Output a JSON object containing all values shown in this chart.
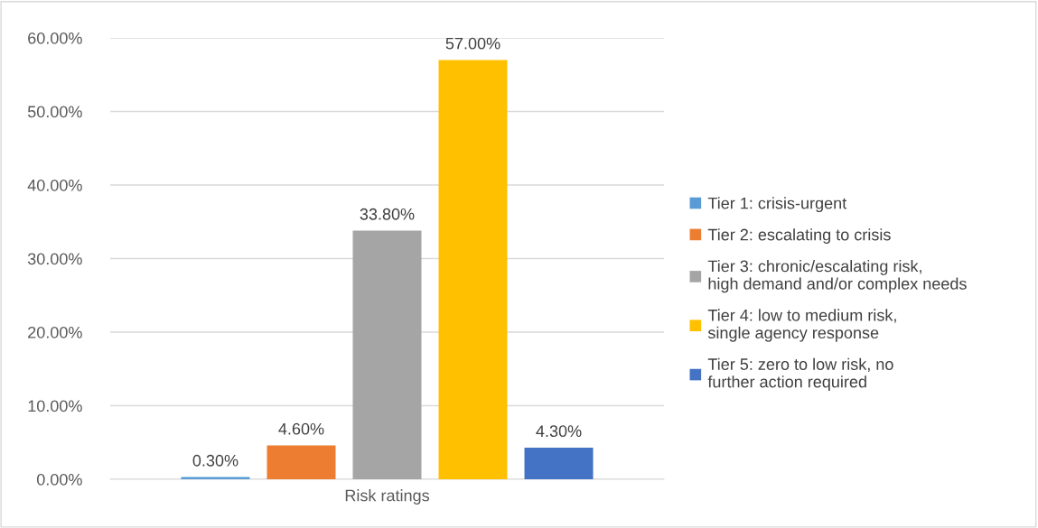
{
  "chart_data": {
    "type": "bar",
    "categories": [
      "Risk ratings"
    ],
    "series": [
      {
        "name": "Tier 1: crisis-urgent",
        "color": "#5b9bd5",
        "values": [
          0.3
        ],
        "value_labels": [
          "0.30%"
        ]
      },
      {
        "name": "Tier 2: escalating to crisis",
        "color": "#ed7d31",
        "values": [
          4.6
        ],
        "value_labels": [
          "4.60%"
        ]
      },
      {
        "name": "Tier 3: chronic/escalating risk, high demand and/or complex needs",
        "color": "#a5a5a5",
        "values": [
          33.8
        ],
        "value_labels": [
          "33.80%"
        ]
      },
      {
        "name": "Tier 4: low to medium risk, single agency response",
        "color": "#ffc000",
        "values": [
          57.0
        ],
        "value_labels": [
          "57.00%"
        ]
      },
      {
        "name": "Tier 5: zero to low risk, no further action required",
        "color": "#4472c4",
        "values": [
          4.3
        ],
        "value_labels": [
          "4.30%"
        ]
      }
    ],
    "ylim": [
      0,
      60
    ],
    "yticks": [
      {
        "value": 0,
        "label": "0.00%"
      },
      {
        "value": 10,
        "label": "10.00%"
      },
      {
        "value": 20,
        "label": "20.00%"
      },
      {
        "value": 30,
        "label": "30.00%"
      },
      {
        "value": 40,
        "label": "40.00%"
      },
      {
        "value": 50,
        "label": "50.00%"
      },
      {
        "value": 60,
        "label": "60.00%"
      }
    ],
    "grid": "y",
    "legend": "right"
  }
}
